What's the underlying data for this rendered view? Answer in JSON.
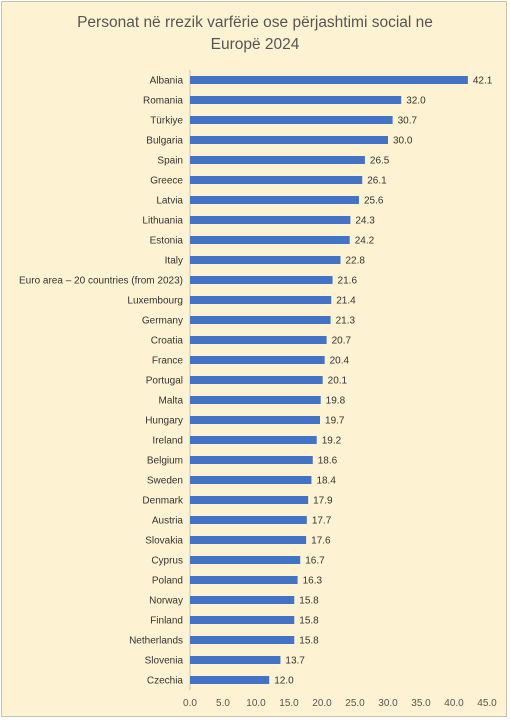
{
  "chart_data": {
    "type": "bar",
    "orientation": "horizontal",
    "title": "Personat në rrezik varfërie ose përjashtimi social ne Europë 2024",
    "title_line1": "Personat në rrezik varfërie ose përjashtimi social ne",
    "title_line2": "Europë 2024",
    "categories": [
      "Albania",
      "Romania",
      "Türkiye",
      "Bulgaria",
      "Spain",
      "Greece",
      "Latvia",
      "Lithuania",
      "Estonia",
      "Italy",
      "Euro area – 20 countries (from 2023)",
      "Luxembourg",
      "Germany",
      "Croatia",
      "France",
      "Portugal",
      "Malta",
      "Hungary",
      "Ireland",
      "Belgium",
      "Sweden",
      "Denmark",
      "Austria",
      "Slovakia",
      "Cyprus",
      "Poland",
      "Norway",
      "Finland",
      "Netherlands",
      "Slovenia",
      "Czechia"
    ],
    "values": [
      42.1,
      32.0,
      30.7,
      30.0,
      26.5,
      26.1,
      25.6,
      24.3,
      24.2,
      22.8,
      21.6,
      21.4,
      21.3,
      20.7,
      20.4,
      20.1,
      19.8,
      19.7,
      19.2,
      18.6,
      18.4,
      17.9,
      17.7,
      17.6,
      16.7,
      16.3,
      15.8,
      15.8,
      15.8,
      13.7,
      12.0
    ],
    "value_labels": [
      "42.1",
      "32.0",
      "30.7",
      "30.0",
      "26.5",
      "26.1",
      "25.6",
      "24.3",
      "24.2",
      "22.8",
      "21.6",
      "21.4",
      "21.3",
      "20.7",
      "20.4",
      "20.1",
      "19.8",
      "19.7",
      "19.2",
      "18.6",
      "18.4",
      "17.9",
      "17.7",
      "17.6",
      "16.7",
      "16.3",
      "15.8",
      "15.8",
      "15.8",
      "13.7",
      "12.0"
    ],
    "xlim": [
      0,
      45
    ],
    "xticks": [
      "0.0",
      "5.0",
      "10.0",
      "15.0",
      "20.0",
      "25.0",
      "30.0",
      "35.0",
      "40.0",
      "45.0"
    ],
    "xlabel": "",
    "ylabel": "",
    "grid": false,
    "legend": "none",
    "colors": {
      "bar": "#4472c4",
      "background": "#fdf3d2",
      "axis": "#bfbfbf",
      "text": "#333333"
    }
  }
}
